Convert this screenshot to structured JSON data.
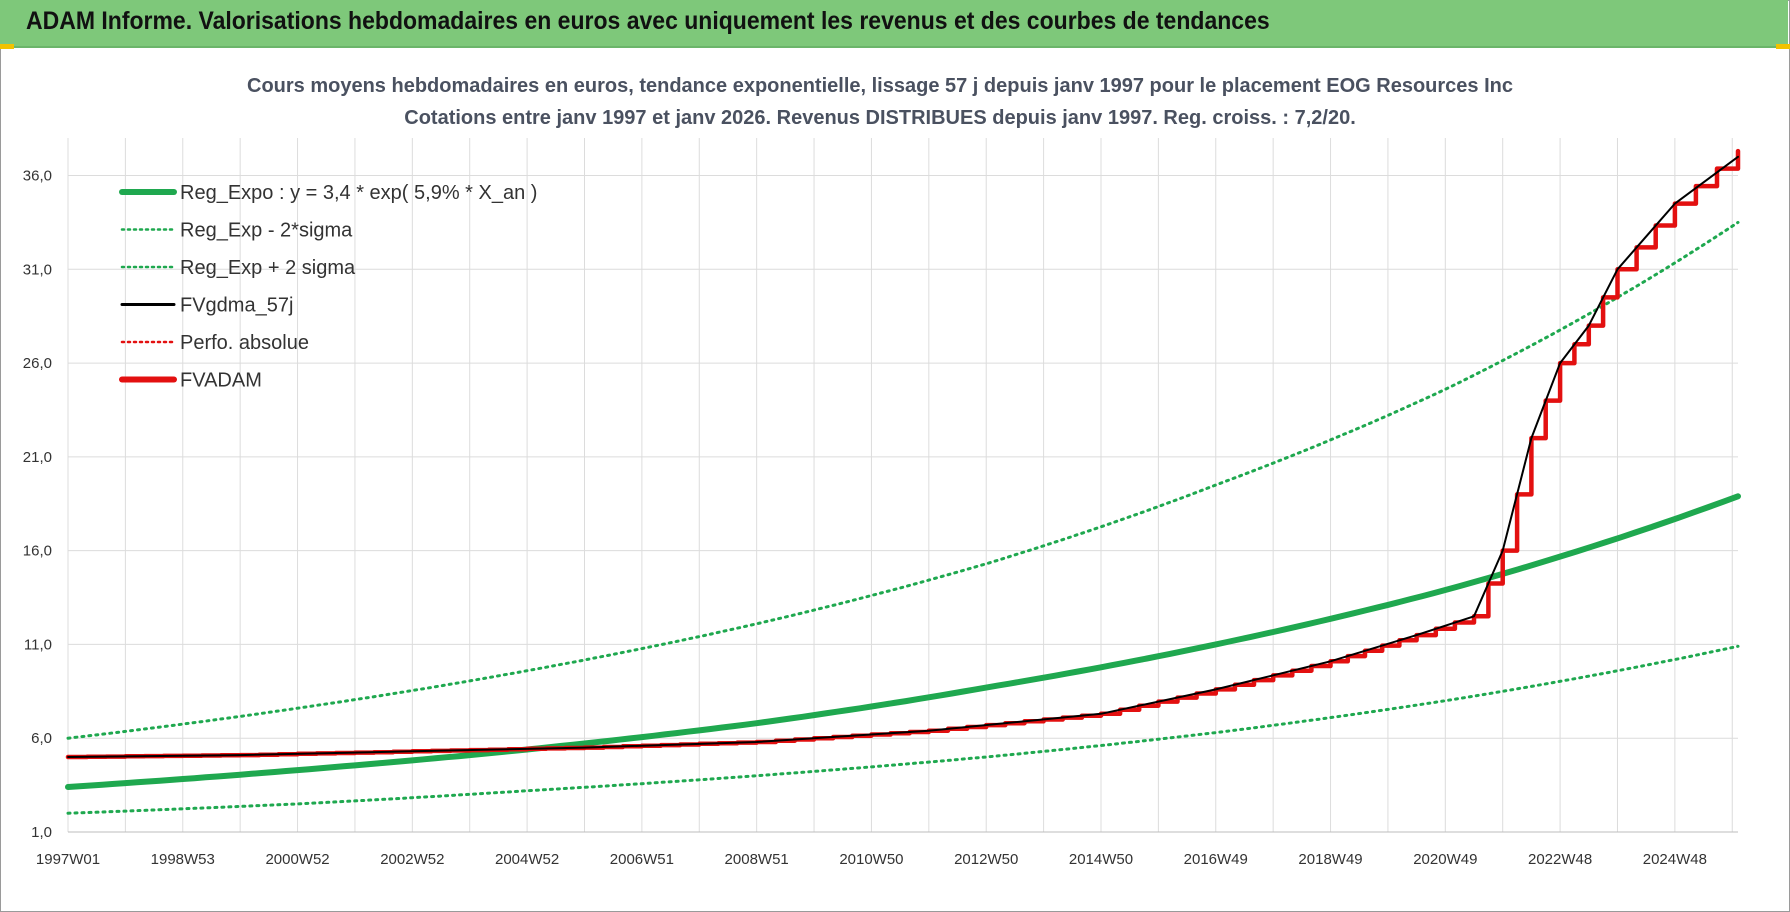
{
  "header": {
    "title": "ADAM Informe. Valorisations hebdomadaires en euros avec uniquement les revenus et des courbes de tendances"
  },
  "chart_data": {
    "type": "line",
    "title_line1": "Cours moyens hebdomadaires en euros, tendance exponentielle, lissage 57 j depuis janv 1997  pour le placement EOG Resources Inc",
    "title_line2": "Cotations entre janv 1997 et janv 2026. Revenus DISTRIBUES depuis janv 1997. Reg. croiss. : 7,2/20.",
    "xlabel": "",
    "ylabel": "",
    "ylim": [
      1,
      38
    ],
    "xlim": [
      1997.0,
      2026.1
    ],
    "y_ticks": [
      "1,0",
      "6,0",
      "11,0",
      "16,0",
      "21,0",
      "26,0",
      "31,0",
      "36,0"
    ],
    "y_tick_values": [
      1,
      6,
      11,
      16,
      21,
      26,
      31,
      36
    ],
    "x_ticks": [
      "1997W01",
      "1998W53",
      "2000W52",
      "2002W52",
      "2004W52",
      "2006W51",
      "2008W51",
      "2010W50",
      "2012W50",
      "2014W50",
      "2016W49",
      "2018W49",
      "2020W49",
      "2022W48",
      "2024W48"
    ],
    "x_tick_values": [
      1997,
      1999,
      2001,
      2003,
      2005,
      2007,
      2009,
      2011,
      2013,
      2015,
      2017,
      2019,
      2021,
      2023,
      2025
    ],
    "grid": true,
    "legend_position": "top-left",
    "legend": [
      {
        "label": "Reg_Expo : y = 3,4 * exp( 5,9% *  X_an )",
        "color": "#1fa84f",
        "style": "solid-thick"
      },
      {
        "label": "Reg_Exp - 2*sigma",
        "color": "#1fa84f",
        "style": "dotted"
      },
      {
        "label": "Reg_Exp + 2 sigma",
        "color": "#1fa84f",
        "style": "dotted"
      },
      {
        "label": "FVgdma_57j",
        "color": "#000000",
        "style": "solid-thin"
      },
      {
        "label": "Perfo. absolue",
        "color": "#e31010",
        "style": "dotted"
      },
      {
        "label": "FVADAM",
        "color": "#e31010",
        "style": "solid-thick"
      }
    ],
    "series": [
      {
        "name": "Reg_Expo",
        "x": [
          1997,
          2001,
          2005,
          2009,
          2013,
          2017,
          2021,
          2026.1
        ],
        "values": [
          3.4,
          4.3,
          5.4,
          6.8,
          8.7,
          11.0,
          13.9,
          18.9
        ]
      },
      {
        "name": "Reg_Exp - 2*sigma",
        "x": [
          1997,
          2001,
          2005,
          2009,
          2013,
          2017,
          2021,
          2026.1
        ],
        "values": [
          2.0,
          2.5,
          3.2,
          4.0,
          5.0,
          6.3,
          8.0,
          10.9
        ]
      },
      {
        "name": "Reg_Exp + 2 sigma",
        "x": [
          1997,
          2001,
          2005,
          2009,
          2013,
          2017,
          2021,
          2026.1
        ],
        "values": [
          6.0,
          7.6,
          9.6,
          12.1,
          15.3,
          19.5,
          24.6,
          33.5
        ]
      },
      {
        "name": "FVgdma_57j",
        "x": [
          1997,
          2000,
          2003,
          2006,
          2009,
          2012,
          2015,
          2017,
          2019,
          2020.5,
          2021.5,
          2022,
          2022.5,
          2023,
          2023.5,
          2024,
          2025,
          2026.1
        ],
        "values": [
          5.0,
          5.1,
          5.3,
          5.5,
          5.8,
          6.4,
          7.3,
          8.6,
          10.1,
          11.5,
          12.5,
          16.0,
          22.0,
          26.0,
          28.0,
          31.0,
          34.5,
          37.0
        ]
      },
      {
        "name": "FVADAM",
        "x": [
          1997,
          2000,
          2003,
          2006,
          2009,
          2012,
          2015,
          2017,
          2019,
          2020.5,
          2021.5,
          2022,
          2022.5,
          2023,
          2023.5,
          2024,
          2025,
          2026.1
        ],
        "values": [
          5.0,
          5.1,
          5.3,
          5.5,
          5.8,
          6.4,
          7.3,
          8.6,
          10.1,
          11.5,
          12.5,
          16.0,
          22.0,
          26.0,
          28.0,
          31.0,
          34.5,
          37.3
        ]
      }
    ]
  }
}
